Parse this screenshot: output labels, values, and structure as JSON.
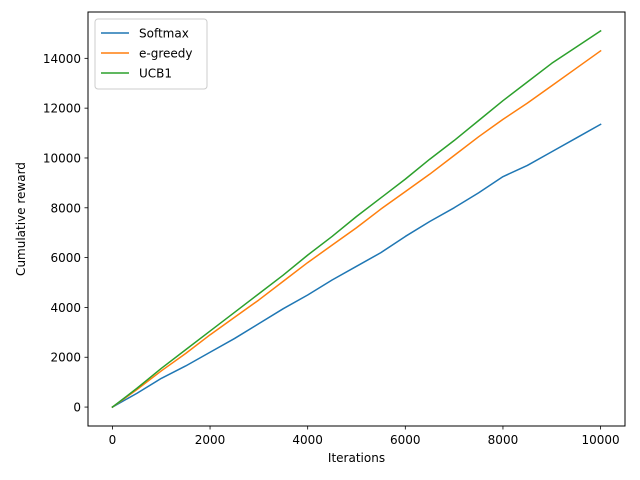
{
  "chart_data": {
    "type": "line",
    "title": "",
    "xlabel": "Iterations",
    "ylabel": "Cumulative reward",
    "xlim": [
      -500,
      10500
    ],
    "ylim": [
      -760,
      15860
    ],
    "xticks": [
      0,
      2000,
      4000,
      6000,
      8000,
      10000
    ],
    "yticks": [
      0,
      2000,
      4000,
      6000,
      8000,
      10000,
      12000,
      14000
    ],
    "grid": false,
    "legend": "top-left",
    "x": [
      0,
      500,
      1000,
      1500,
      2000,
      2500,
      3000,
      3500,
      4000,
      4500,
      5000,
      5500,
      6000,
      6500,
      7000,
      7500,
      8000,
      8500,
      9000,
      9500,
      10000
    ],
    "series": [
      {
        "name": "Softmax",
        "color": "#1f77b4",
        "values": [
          0,
          550,
          1150,
          1650,
          2200,
          2750,
          3350,
          3950,
          4500,
          5100,
          5650,
          6200,
          6850,
          7450,
          8000,
          8600,
          9250,
          9700,
          10250,
          10800,
          11350
        ]
      },
      {
        "name": "e-greedy",
        "color": "#ff7f0e",
        "values": [
          0,
          700,
          1450,
          2150,
          2900,
          3600,
          4300,
          5050,
          5800,
          6500,
          7200,
          7950,
          8650,
          9350,
          10100,
          10850,
          11550,
          12200,
          12900,
          13600,
          14300
        ]
      },
      {
        "name": "UCB1",
        "color": "#2ca02c",
        "values": [
          0,
          750,
          1550,
          2300,
          3050,
          3800,
          4550,
          5300,
          6100,
          6850,
          7650,
          8400,
          9150,
          9950,
          10700,
          11500,
          12300,
          13050,
          13800,
          14450,
          15100
        ]
      }
    ]
  }
}
